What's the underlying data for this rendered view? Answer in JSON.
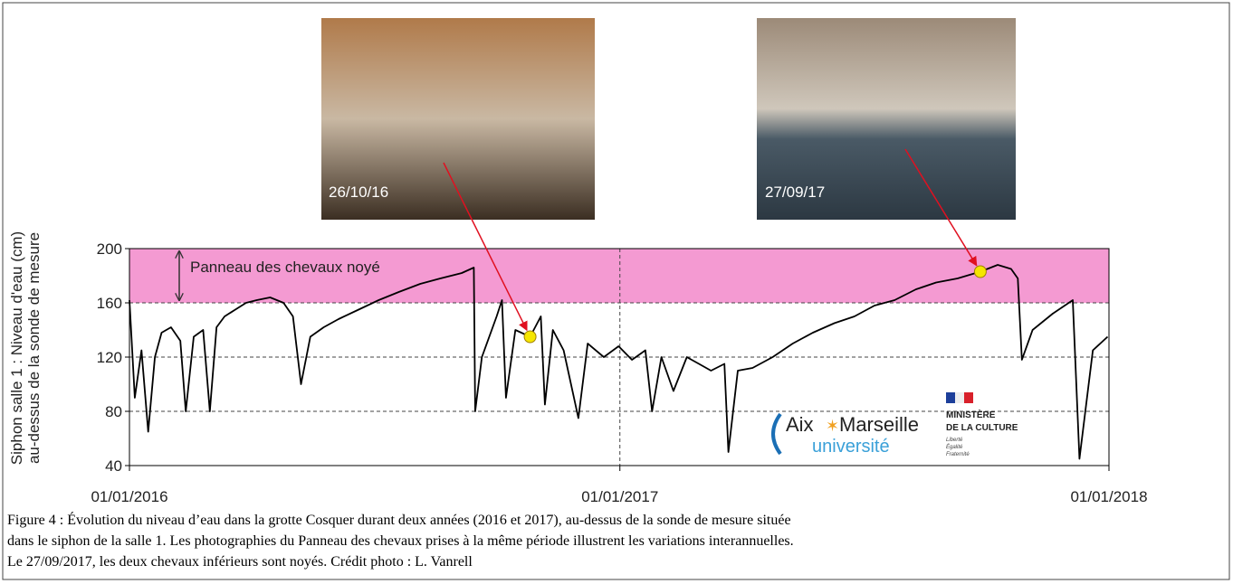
{
  "chart_data": {
    "type": "line",
    "ylabel": [
      "Siphon salle 1 : Niveau d'eau (cm)",
      "au-dessus de la sonde de mesure"
    ],
    "annotation": "Panneau des chevaux noyé",
    "band": [
      160,
      200
    ],
    "band_color": "#f49ad2",
    "color": "#000000",
    "xlim": [
      "2016-01-01",
      "2018-01-01"
    ],
    "xticks": [
      {
        "value": "2016-01-01",
        "label": "01/01/2016"
      },
      {
        "value": "2017-01-01",
        "label": "01/01/2017"
      },
      {
        "value": "2018-01-01",
        "label": "01/01/2018"
      }
    ],
    "ylim": [
      40,
      200
    ],
    "yticks": [
      40,
      80,
      120,
      160,
      200
    ],
    "grid": true,
    "x": [
      "2016-01-01",
      "2016-01-05",
      "2016-01-10",
      "2016-01-15",
      "2016-01-20",
      "2016-01-25",
      "2016-02-01",
      "2016-02-08",
      "2016-02-12",
      "2016-02-18",
      "2016-02-25",
      "2016-03-01",
      "2016-03-06",
      "2016-03-12",
      "2016-03-20",
      "2016-03-28",
      "2016-04-05",
      "2016-04-15",
      "2016-04-25",
      "2016-05-02",
      "2016-05-08",
      "2016-05-15",
      "2016-05-25",
      "2016-06-05",
      "2016-06-20",
      "2016-07-05",
      "2016-07-20",
      "2016-08-05",
      "2016-08-20",
      "2016-09-05",
      "2016-09-14",
      "2016-09-15",
      "2016-09-20",
      "2016-10-01",
      "2016-10-05",
      "2016-10-08",
      "2016-10-15",
      "2016-10-26",
      "2016-11-03",
      "2016-11-06",
      "2016-11-12",
      "2016-11-20",
      "2016-12-01",
      "2016-12-08",
      "2016-12-20",
      "2016-12-31",
      "2017-01-10",
      "2017-01-20",
      "2017-01-25",
      "2017-02-01",
      "2017-02-10",
      "2017-02-20",
      "2017-03-01",
      "2017-03-10",
      "2017-03-20",
      "2017-03-23",
      "2017-03-30",
      "2017-04-10",
      "2017-04-25",
      "2017-05-10",
      "2017-05-25",
      "2017-06-10",
      "2017-06-25",
      "2017-07-10",
      "2017-07-25",
      "2017-08-10",
      "2017-08-25",
      "2017-09-10",
      "2017-09-27",
      "2017-10-10",
      "2017-10-20",
      "2017-10-25",
      "2017-10-28",
      "2017-11-05",
      "2017-11-20",
      "2017-12-05",
      "2017-12-10",
      "2017-12-20",
      "2017-12-31"
    ],
    "values": [
      162,
      90,
      125,
      65,
      120,
      138,
      142,
      132,
      80,
      135,
      140,
      80,
      142,
      150,
      155,
      160,
      162,
      164,
      160,
      150,
      100,
      135,
      142,
      148,
      155,
      162,
      168,
      174,
      178,
      182,
      186,
      80,
      120,
      150,
      162,
      90,
      140,
      135,
      150,
      85,
      140,
      125,
      75,
      130,
      120,
      128,
      118,
      125,
      80,
      120,
      95,
      120,
      115,
      110,
      115,
      50,
      110,
      112,
      120,
      130,
      138,
      145,
      150,
      158,
      162,
      170,
      175,
      178,
      183,
      188,
      185,
      178,
      118,
      140,
      152,
      162,
      45,
      125,
      135
    ],
    "highlights": [
      {
        "x": "2016-10-26",
        "y": 135
      },
      {
        "x": "2017-09-27",
        "y": 183
      }
    ],
    "highlight_color": "#f5e600",
    "caption": [
      "Figure 4 : Évolution du niveau d’eau dans la grotte Cosquer durant deux années (2016 et 2017), au-dessus de la sonde de mesure située",
      "dans le siphon de la salle 1. Les photographies du Panneau des chevaux prises à la même période illustrent les variations interannuelles.",
      "Le 27/09/2017, les deux chevaux inférieurs sont noyés. Crédit photo : L. Vanrell"
    ]
  },
  "photos": [
    {
      "label": "26/10/16"
    },
    {
      "label": "27/09/17"
    }
  ],
  "logos": {
    "aix": [
      "Aix",
      "Marseille",
      "université"
    ],
    "ministry": [
      "MINISTÈRE",
      "DE LA CULTURE",
      "Liberté",
      "Égalité",
      "Fraternité"
    ]
  }
}
